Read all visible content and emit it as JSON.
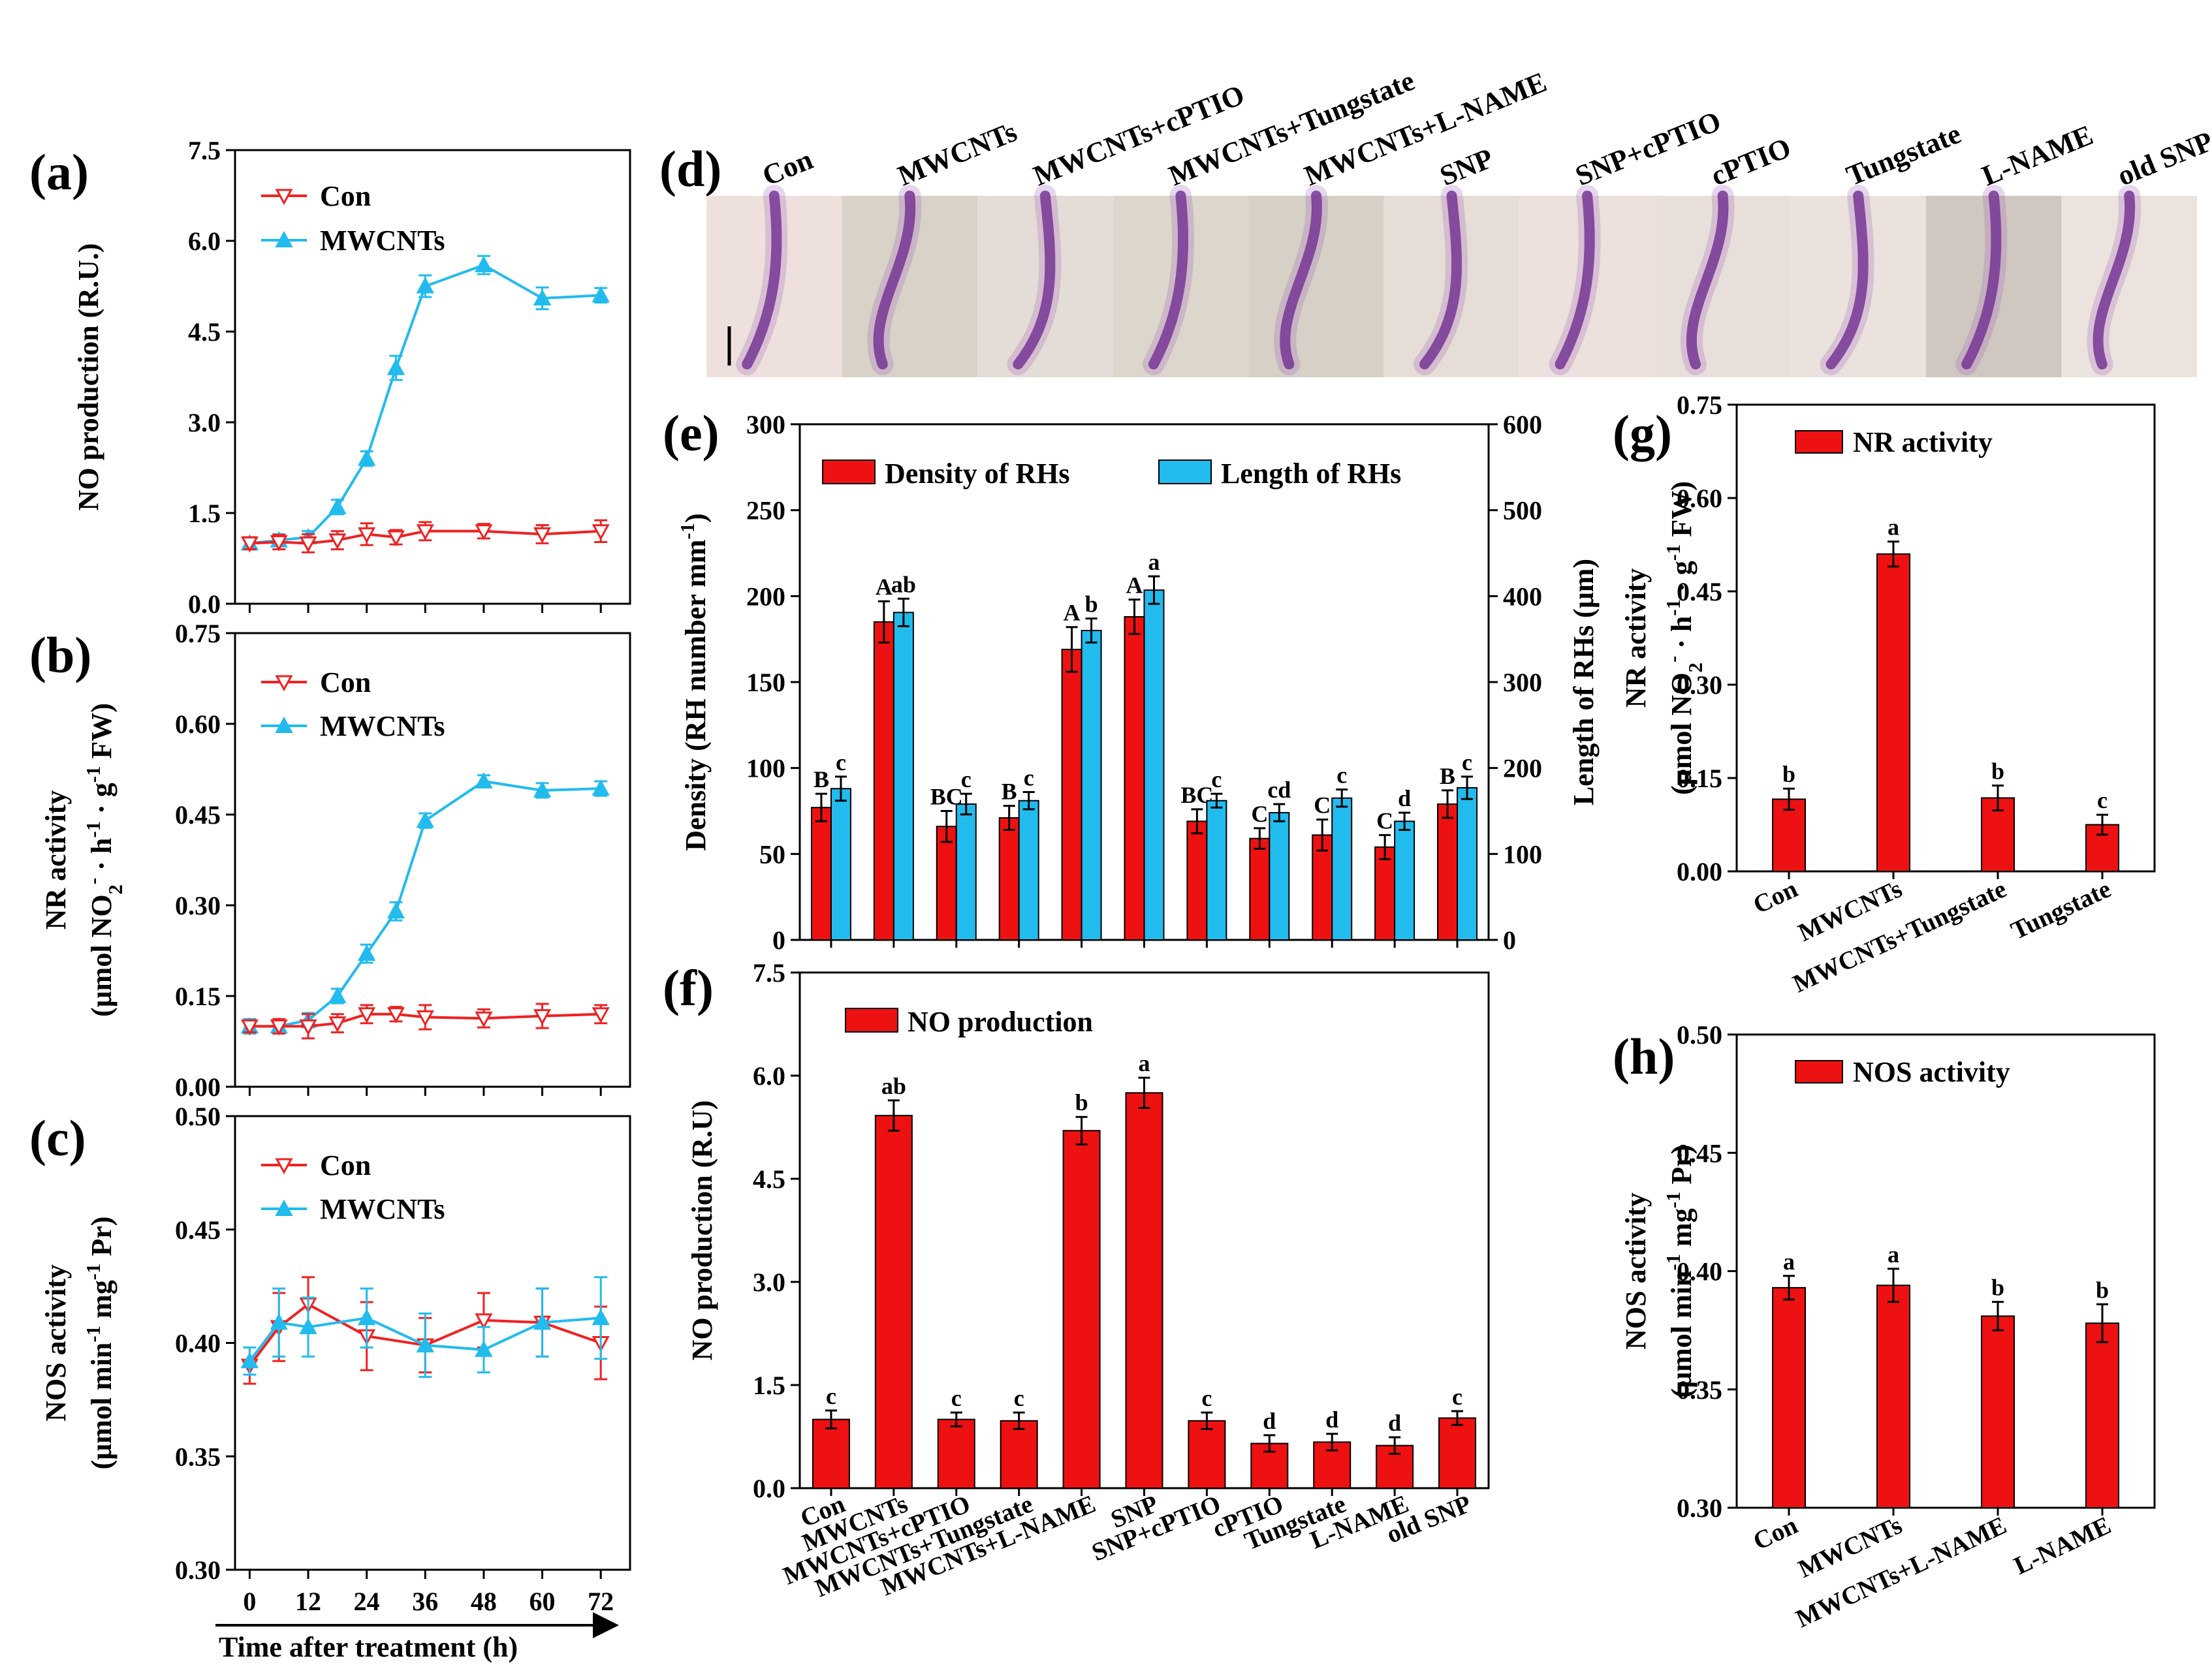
{
  "panel_letters": [
    "(a)",
    "(b)",
    "(c)",
    "(d)",
    "(e)",
    "(f)",
    "(g)",
    "(h)"
  ],
  "colors": {
    "con": "#ee2222",
    "mwcnts": "#22bbee",
    "bar_red": "#ee1111",
    "bar_blue": "#22bbee",
    "stain_purple": "#6a2a8a",
    "photo_bg": "#e8ddd8"
  },
  "shared_x_label": "Time after treatment (h)",
  "panel_d": {
    "type": "image-strip",
    "labels": [
      "Con",
      "MWCNTs",
      "MWCNTs+cPTIO",
      "MWCNTs+Tungstate",
      "MWCNTs+L-NAME",
      "SNP",
      "SNP+cPTIO",
      "cPTIO",
      "Tungstate",
      "L-NAME",
      "old SNP"
    ]
  },
  "chart_data": [
    {
      "id": "a",
      "type": "line",
      "title": "",
      "xlabel": "Time after treatment (h)",
      "ylabel": "NO production (R.U.)",
      "ylim": [
        0,
        7.5
      ],
      "yticks": [
        "0.0",
        "1.5",
        "3.0",
        "4.5",
        "6.0",
        "7.5"
      ],
      "x": [
        0,
        6,
        12,
        18,
        24,
        30,
        36,
        48,
        60,
        72
      ],
      "legend": "top-left",
      "series": [
        {
          "name": "Con",
          "values": [
            1.0,
            1.02,
            1.0,
            1.05,
            1.15,
            1.1,
            1.2,
            1.2,
            1.15,
            1.2
          ],
          "errors": [
            0.1,
            0.12,
            0.15,
            0.15,
            0.18,
            0.12,
            0.15,
            0.12,
            0.15,
            0.18
          ]
        },
        {
          "name": "MWCNTs",
          "values": [
            1.0,
            1.05,
            1.1,
            1.6,
            2.4,
            3.9,
            5.25,
            5.6,
            5.05,
            5.1
          ],
          "errors": [
            0.1,
            0.1,
            0.1,
            0.12,
            0.12,
            0.2,
            0.18,
            0.15,
            0.18,
            0.12
          ]
        }
      ]
    },
    {
      "id": "b",
      "type": "line",
      "title": "",
      "xlabel": "Time after treatment (h)",
      "ylabel": "NR activity",
      "ylabel2": "(μmol NO2- · h-1 · g-1 FW)",
      "ylim": [
        0,
        0.75
      ],
      "yticks": [
        "0.00",
        "0.15",
        "0.30",
        "0.45",
        "0.60",
        "0.75"
      ],
      "x": [
        0,
        6,
        12,
        18,
        24,
        30,
        36,
        48,
        60,
        72
      ],
      "legend": "top-left",
      "series": [
        {
          "name": "Con",
          "values": [
            0.1,
            0.1,
            0.1,
            0.105,
            0.12,
            0.12,
            0.115,
            0.113,
            0.117,
            0.12
          ],
          "errors": [
            0.01,
            0.012,
            0.02,
            0.015,
            0.015,
            0.012,
            0.02,
            0.015,
            0.02,
            0.015
          ]
        },
        {
          "name": "MWCNTs",
          "values": [
            0.1,
            0.1,
            0.11,
            0.15,
            0.22,
            0.29,
            0.44,
            0.505,
            0.49,
            0.493
          ],
          "errors": [
            0.012,
            0.01,
            0.012,
            0.012,
            0.015,
            0.015,
            0.012,
            0.01,
            0.012,
            0.012
          ]
        }
      ]
    },
    {
      "id": "c",
      "type": "line",
      "title": "",
      "xlabel": "Time after treatment (h)",
      "ylabel": "NOS activity",
      "ylabel2": "(μmol min-1 mg-1 Pr)",
      "ylim": [
        0.3,
        0.5
      ],
      "yticks": [
        "0.30",
        "0.35",
        "0.40",
        "0.45",
        "0.50"
      ],
      "xticks": [
        "0",
        "12",
        "24",
        "36",
        "48",
        "60",
        "72"
      ],
      "x": [
        0,
        6,
        12,
        24,
        36,
        48,
        60,
        72
      ],
      "legend": "top-left",
      "series": [
        {
          "name": "Con",
          "values": [
            0.39,
            0.407,
            0.417,
            0.403,
            0.399,
            0.41,
            0.409,
            0.4
          ],
          "errors": [
            0.008,
            0.015,
            0.012,
            0.015,
            0.012,
            0.012,
            0.015,
            0.016
          ]
        },
        {
          "name": "MWCNTs",
          "values": [
            0.392,
            0.409,
            0.407,
            0.411,
            0.399,
            0.397,
            0.409,
            0.411
          ],
          "errors": [
            0.006,
            0.015,
            0.013,
            0.013,
            0.014,
            0.01,
            0.015,
            0.018
          ]
        }
      ]
    },
    {
      "id": "e",
      "type": "bar",
      "title": "",
      "categories": [
        "Con",
        "MWCNTs",
        "MWCNTs+cPTIO",
        "MWCNTs+Tungstate",
        "MWCNTs+L-NAME",
        "SNP",
        "SNP+cPTIO",
        "cPTIO",
        "Tungstate",
        "L-NAME",
        "old SNP"
      ],
      "ylabel": "Density (RH  number mm-1)",
      "ylabel_right": "Length of RHs (μm)",
      "ylim": [
        0,
        300
      ],
      "ylim_right": [
        0,
        600
      ],
      "yticks": [
        "0",
        "50",
        "100",
        "150",
        "200",
        "250",
        "300"
      ],
      "yticks_right": [
        "0",
        "100",
        "200",
        "300",
        "400",
        "500",
        "600"
      ],
      "legend": "top",
      "series": [
        {
          "name": "Density of RHs",
          "axis": "left",
          "values": [
            77,
            185,
            66,
            71,
            169,
            188,
            69,
            59,
            61,
            54,
            79
          ],
          "errors": [
            8,
            12,
            9,
            7,
            13,
            10,
            7,
            6,
            9,
            7,
            8
          ],
          "labels": [
            "B",
            "A",
            "BC",
            "B",
            "A",
            "A",
            "BC",
            "C",
            "C",
            "C",
            "B"
          ]
        },
        {
          "name": "Length of RHs",
          "axis": "right",
          "values": [
            176,
            381,
            158,
            162,
            360,
            407,
            162,
            148,
            165,
            138,
            177
          ],
          "errors": [
            14,
            16,
            12,
            10,
            14,
            16,
            8,
            10,
            10,
            10,
            13
          ],
          "labels": [
            "c",
            "ab",
            "c",
            "c",
            "b",
            "a",
            "c",
            "cd",
            "c",
            "d",
            "c"
          ]
        }
      ]
    },
    {
      "id": "f",
      "type": "bar",
      "title": "",
      "categories": [
        "Con",
        "MWCNTs",
        "MWCNTs+cPTIO",
        "MWCNTs+Tungstate",
        "MWCNTs+L-NAME",
        "SNP",
        "SNP+cPTIO",
        "cPTIO",
        "Tungstate",
        "L-NAME",
        "old SNP"
      ],
      "ylabel": "NO production (R.U)",
      "ylim": [
        0,
        7.5
      ],
      "yticks": [
        "0.0",
        "1.5",
        "3.0",
        "4.5",
        "6.0",
        "7.5"
      ],
      "legend": "top-left",
      "series": [
        {
          "name": "NO production",
          "values": [
            1.0,
            5.42,
            1.0,
            0.98,
            5.2,
            5.75,
            0.98,
            0.65,
            0.67,
            0.62,
            1.02
          ],
          "errors": [
            0.13,
            0.22,
            0.1,
            0.12,
            0.2,
            0.22,
            0.12,
            0.12,
            0.12,
            0.12,
            0.1
          ],
          "labels": [
            "c",
            "ab",
            "c",
            "c",
            "b",
            "a",
            "c",
            "d",
            "d",
            "d",
            "c"
          ]
        }
      ]
    },
    {
      "id": "g",
      "type": "bar",
      "title": "",
      "categories": [
        "Con",
        "MWCNTs",
        "MWCNTs+Tungstate",
        "Tungstate"
      ],
      "ylabel": "NR activity",
      "ylabel2": "(μmol NO2- · h-1 · g-1 FW)",
      "ylim": [
        0,
        0.75
      ],
      "yticks": [
        "0.00",
        "0.15",
        "0.30",
        "0.45",
        "0.60",
        "0.75"
      ],
      "legend": "top-left",
      "series": [
        {
          "name": "NR activity",
          "values": [
            0.116,
            0.51,
            0.118,
            0.075
          ],
          "errors": [
            0.017,
            0.02,
            0.02,
            0.016
          ],
          "labels": [
            "b",
            "a",
            "b",
            "c"
          ]
        }
      ]
    },
    {
      "id": "h",
      "type": "bar",
      "title": "",
      "categories": [
        "Con",
        "MWCNTs",
        "MWCNTs+L-NAME",
        "L-NAME"
      ],
      "ylabel": "NOS activity",
      "ylabel2": "(μmol min-1 mg-1 Pr)",
      "ylim": [
        0.3,
        0.5
      ],
      "yticks": [
        "0.30",
        "0.35",
        "0.40",
        "0.45",
        "0.50"
      ],
      "legend": "top-left",
      "series": [
        {
          "name": "NOS activity",
          "values": [
            0.393,
            0.394,
            0.381,
            0.378
          ],
          "errors": [
            0.005,
            0.007,
            0.006,
            0.008
          ],
          "labels": [
            "a",
            "a",
            "b",
            "b"
          ]
        }
      ]
    }
  ]
}
